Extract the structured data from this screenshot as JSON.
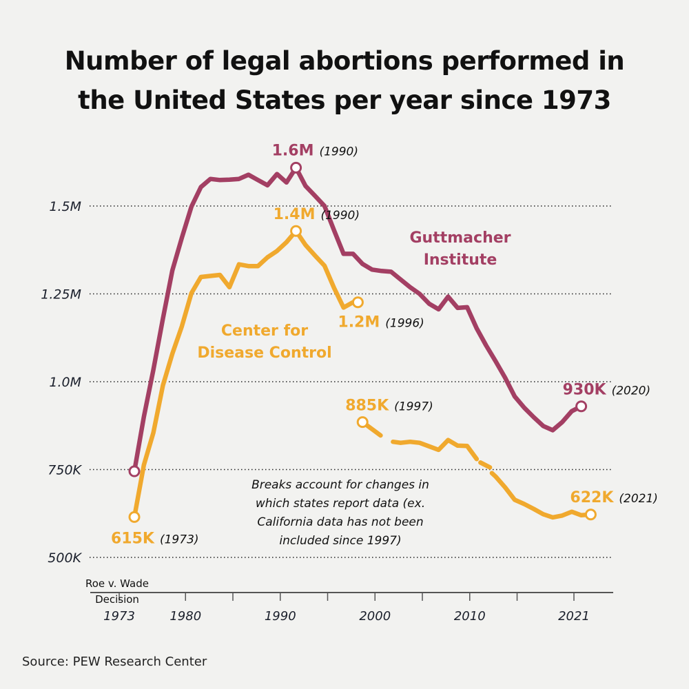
{
  "colors": {
    "background": "#f2f2f0",
    "guttmacher": "#a33f63",
    "cdc": "#f0a92e",
    "text": "#111111"
  },
  "source": "Source: PEW Research Center",
  "chart_data": {
    "type": "line",
    "title": "Number of legal abortions performed in the United States per year since 1973",
    "xlabel": "",
    "ylabel": "",
    "ylim": [
      500000,
      1650000
    ],
    "xlim": [
      1971.5,
      2023.5
    ],
    "grid": "horizontal dotted",
    "y_ticks": [
      {
        "value": 500000,
        "label": "500K"
      },
      {
        "value": 750000,
        "label": "750K"
      },
      {
        "value": 1000000,
        "label": "1.0M"
      },
      {
        "value": 1250000,
        "label": "1.25M"
      },
      {
        "value": 1500000,
        "label": "1.5M"
      }
    ],
    "x_ticks": [
      {
        "value": 1973,
        "label": "1973"
      },
      {
        "value": 1980,
        "label": "1980"
      },
      {
        "value": 1985,
        "label": ""
      },
      {
        "value": 1990,
        "label": "1990"
      },
      {
        "value": 1995,
        "label": ""
      },
      {
        "value": 2000,
        "label": "2000"
      },
      {
        "value": 2005,
        "label": ""
      },
      {
        "value": 2010,
        "label": "2010"
      },
      {
        "value": 2015,
        "label": ""
      },
      {
        "value": 2021,
        "label": "2021"
      }
    ],
    "x_annotation": "Roe v. Wade Decision",
    "series": [
      {
        "name": "Guttmacher Institute",
        "color": "#a33f63",
        "segments": [
          [
            [
              1973,
              745000
            ],
            [
              1974,
              900000
            ],
            [
              1975,
              1034000
            ],
            [
              1976,
              1179000
            ],
            [
              1977,
              1317000
            ],
            [
              1978,
              1410000
            ],
            [
              1979,
              1498000
            ],
            [
              1980,
              1554000
            ],
            [
              1981,
              1577000
            ],
            [
              1982,
              1574000
            ],
            [
              1983,
              1575000
            ],
            [
              1984,
              1577000
            ],
            [
              1985,
              1589000
            ],
            [
              1986,
              1574000
            ],
            [
              1987,
              1559000
            ],
            [
              1988,
              1591000
            ],
            [
              1989,
              1567000
            ],
            [
              1990,
              1609000
            ],
            [
              1991,
              1557000
            ],
            [
              1992,
              1529000
            ],
            [
              1993,
              1500000
            ],
            [
              1994,
              1431000
            ],
            [
              1995,
              1364000
            ],
            [
              1996,
              1364000
            ],
            [
              1997,
              1335000
            ],
            [
              1998,
              1319000
            ],
            [
              1999,
              1315000
            ],
            [
              2000,
              1313000
            ],
            [
              2001,
              1291000
            ],
            [
              2002,
              1269000
            ],
            [
              2003,
              1250000
            ],
            [
              2004,
              1222000
            ],
            [
              2005,
              1206000
            ],
            [
              2006,
              1242000
            ],
            [
              2007,
              1210000
            ],
            [
              2008,
              1212000
            ],
            [
              2009,
              1152000
            ],
            [
              2010,
              1103000
            ],
            [
              2011,
              1058000
            ],
            [
              2012,
              1011000
            ],
            [
              2013,
              958000
            ],
            [
              2014,
              926000
            ],
            [
              2015,
              899000
            ],
            [
              2016,
              874000
            ],
            [
              2017,
              862000
            ],
            [
              2018,
              885000
            ],
            [
              2019,
              916000
            ],
            [
              2020,
              930000
            ]
          ]
        ],
        "annotations": [
          {
            "year": 1973,
            "value": 745000,
            "label": "",
            "year_label": ""
          },
          {
            "year": 1990,
            "value": 1609000,
            "label": "1.6M",
            "year_label": "(1990)"
          },
          {
            "year": 2020,
            "value": 930000,
            "label": "930K",
            "year_label": "(2020)"
          }
        ]
      },
      {
        "name": "Center for Disease Control",
        "color": "#f0a92e",
        "segments": [
          [
            [
              1973,
              615000
            ],
            [
              1974,
              763000
            ],
            [
              1975,
              855000
            ],
            [
              1976,
              989000
            ],
            [
              1977,
              1080000
            ],
            [
              1978,
              1158000
            ],
            [
              1979,
              1252000
            ],
            [
              1980,
              1298000
            ],
            [
              1981,
              1301000
            ],
            [
              1982,
              1304000
            ],
            [
              1983,
              1269000
            ],
            [
              1984,
              1334000
            ],
            [
              1985,
              1329000
            ],
            [
              1986,
              1329000
            ],
            [
              1987,
              1354000
            ],
            [
              1988,
              1372000
            ],
            [
              1989,
              1397000
            ],
            [
              1990,
              1429000
            ],
            [
              1991,
              1389000
            ],
            [
              1992,
              1359000
            ],
            [
              1993,
              1330000
            ],
            [
              1994,
              1267000
            ],
            [
              1995,
              1211000
            ],
            [
              1996,
              1226000
            ]
          ],
          [
            [
              1997,
              885000
            ],
            [
              1998.9,
              847000
            ]
          ],
          [
            [
              2000.2,
              829000
            ],
            [
              2001,
              826000
            ],
            [
              2002,
              829000
            ],
            [
              2003,
              826000
            ],
            [
              2004,
              816000
            ],
            [
              2005,
              806000
            ],
            [
              2006,
              834000
            ],
            [
              2007,
              818000
            ],
            [
              2008,
              817000
            ],
            [
              2009,
              780000
            ]
          ],
          [
            [
              2009.4,
              770000
            ],
            [
              2010.4,
              756000
            ]
          ],
          [
            [
              2010.6,
              740000
            ],
            [
              2011,
              730000
            ],
            [
              2012,
              699000
            ],
            [
              2013,
              664000
            ],
            [
              2014,
              652000
            ],
            [
              2015,
              638000
            ],
            [
              2016,
              623000
            ],
            [
              2017,
              614000
            ],
            [
              2018,
              619000
            ],
            [
              2019,
              630000
            ],
            [
              2020,
              620000
            ],
            [
              2021,
              622000
            ]
          ]
        ],
        "annotations": [
          {
            "year": 1973,
            "value": 615000,
            "label": "615K",
            "year_label": "(1973)"
          },
          {
            "year": 1990,
            "value": 1429000,
            "label": "1.4M",
            "year_label": "(1990)"
          },
          {
            "year": 1996,
            "value": 1226000,
            "label": "1.2M",
            "year_label": "(1996)"
          },
          {
            "year": 1997,
            "value": 885000,
            "label": "885K",
            "year_label": "(1997)"
          },
          {
            "year": 2021,
            "value": 622000,
            "label": "622K",
            "year_label": "(2021)"
          }
        ]
      }
    ],
    "series_labels": [
      {
        "series": "Guttmacher Institute",
        "lines": [
          "Guttmacher",
          "Institute"
        ]
      },
      {
        "series": "Center for Disease Control",
        "lines": [
          "Center for",
          "Disease Control"
        ]
      }
    ],
    "note": [
      "Breaks account for changes in",
      "which states report data (ex.",
      "California data has not been",
      "included since 1997)"
    ]
  }
}
